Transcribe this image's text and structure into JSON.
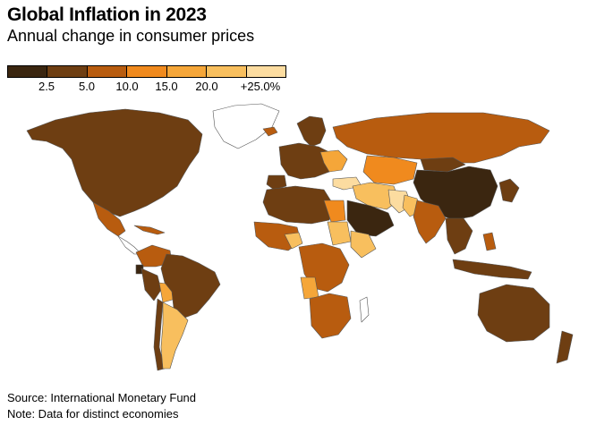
{
  "title": "Global Inflation in 2023",
  "subtitle": "Annual change in consumer prices",
  "legend": {
    "colors": [
      "#3b2610",
      "#6e3e12",
      "#b85c0f",
      "#f08a1e",
      "#f5a639",
      "#f8bf5e",
      "#fcdca0"
    ],
    "ticks": [
      "2.5",
      "5.0",
      "10.0",
      "15.0",
      "20.0",
      "+25.0%"
    ]
  },
  "map_colors": {
    "c1": "#3b2610",
    "c2": "#6e3e12",
    "c3": "#b85c0f",
    "c4": "#f08a1e",
    "c5": "#f5a639",
    "c6": "#f8bf5e",
    "c7": "#fcdca0",
    "nodata": "#ffffff",
    "border": "#555555"
  },
  "footer": {
    "source": "Source: International Monetary Fund",
    "note": "Note: Data for distinct economies"
  }
}
